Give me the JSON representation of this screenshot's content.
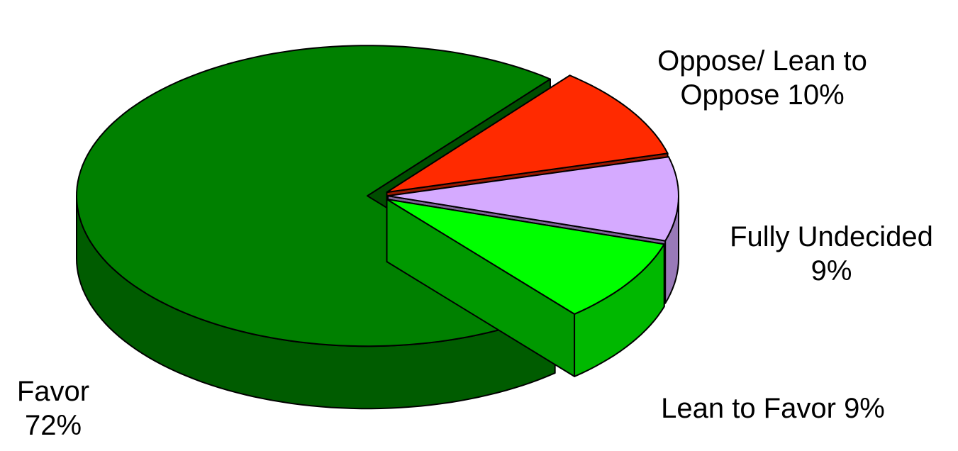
{
  "chart_data": {
    "type": "pie",
    "categories": [
      "Oppose/ Lean to Oppose",
      "Fully Undecided",
      "Lean to Favor",
      "Favor"
    ],
    "values": [
      10,
      9,
      9,
      72
    ],
    "value_labels": [
      "10%",
      "9%",
      "9%",
      "72%"
    ],
    "colors": [
      "#ff2a00",
      "#d5aaff",
      "#00ff00",
      "#008000"
    ]
  }
}
